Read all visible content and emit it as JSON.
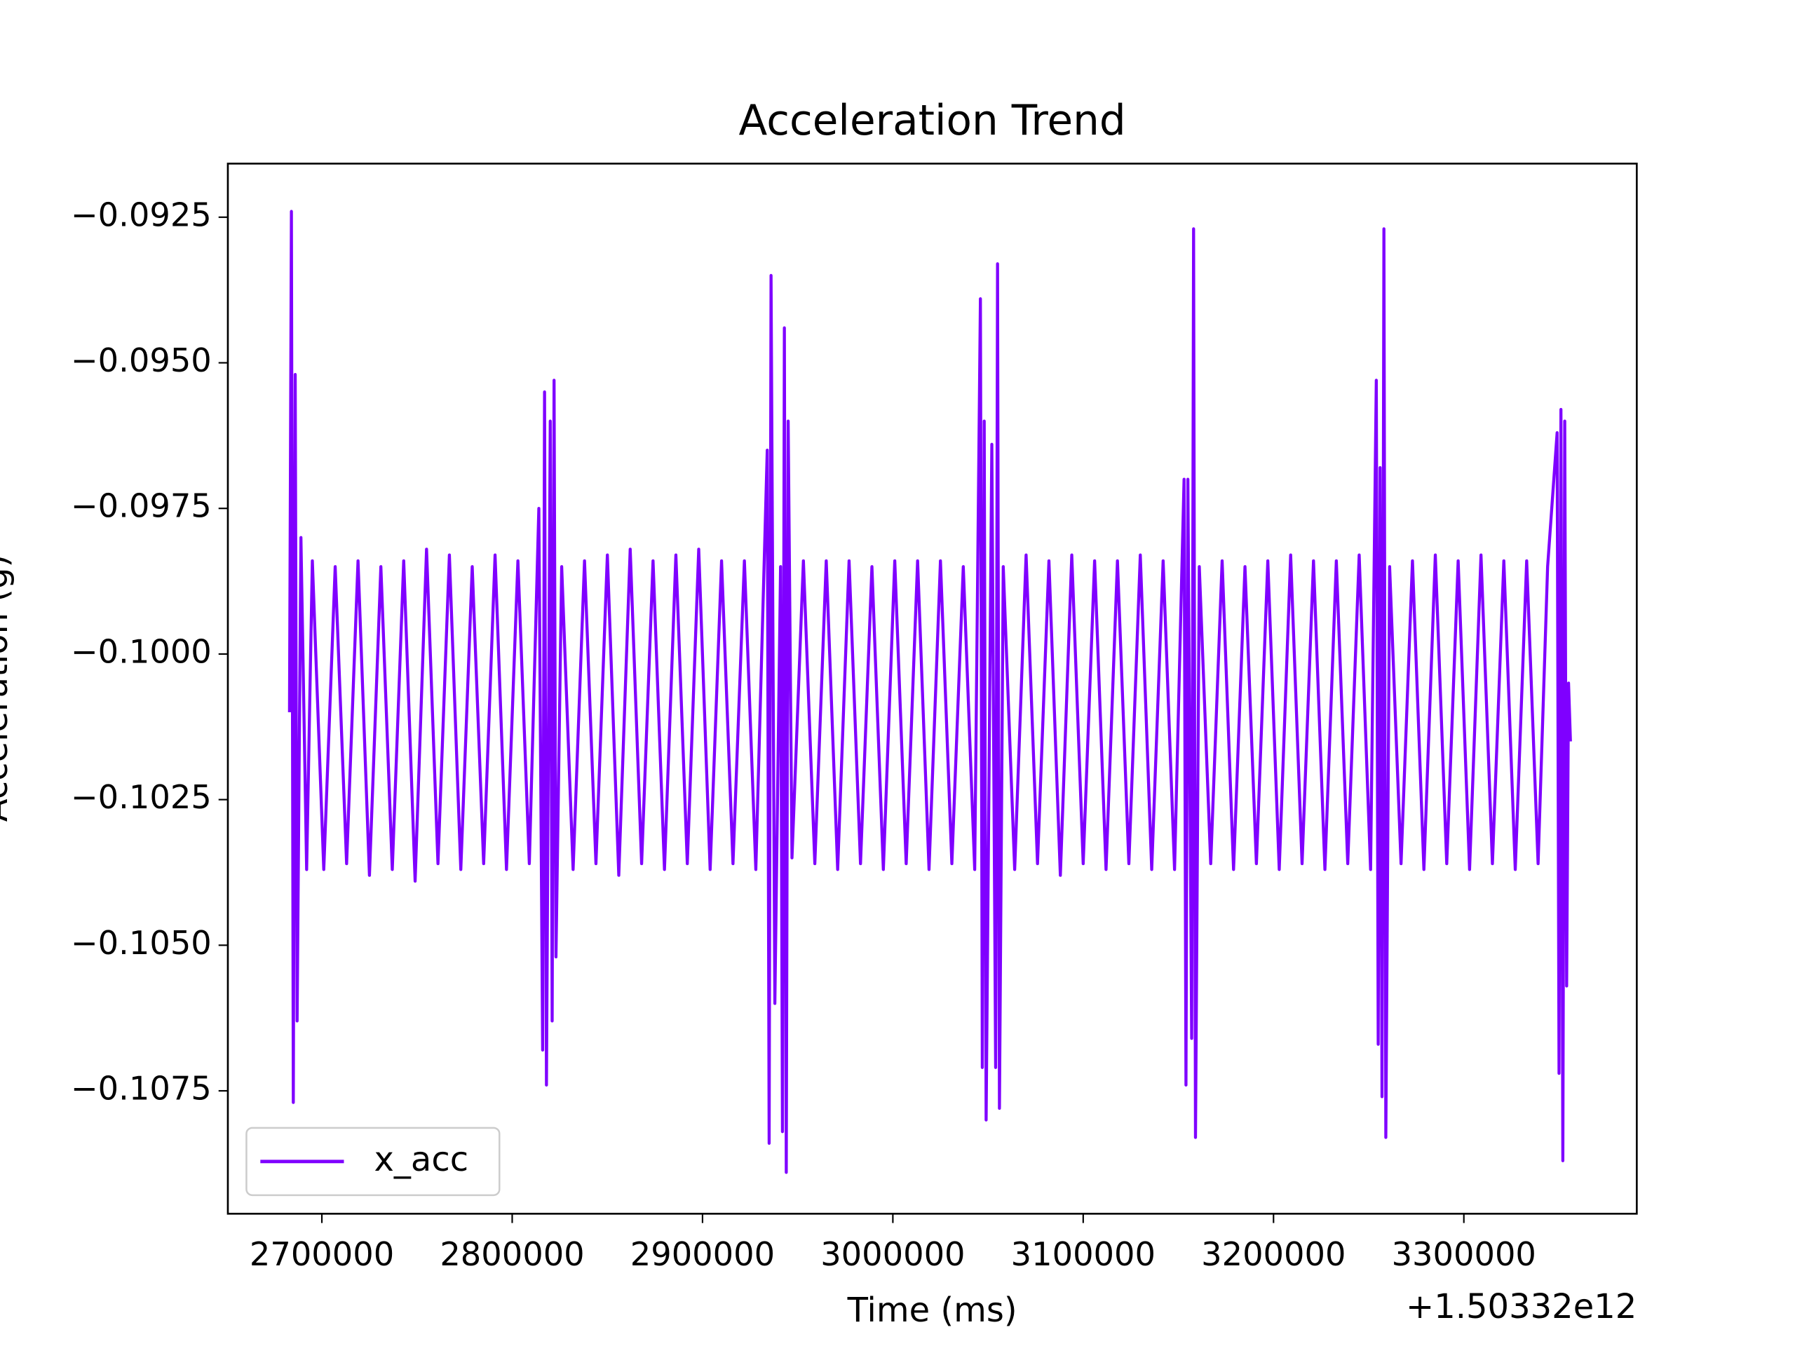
{
  "chart_data": {
    "type": "line",
    "title": "Acceleration Trend",
    "x_label": "Time (ms)",
    "y_label": "Acceleration (g)",
    "x_offset_text": "+1.50332e12",
    "legend": "lower left",
    "grid": false,
    "xlim": [
      2650610,
      3390850
    ],
    "ylim": [
      -0.10961,
      -0.09158
    ],
    "xticks": [
      2700000,
      2800000,
      2900000,
      3000000,
      3100000,
      3200000,
      3300000
    ],
    "yticks": [
      {
        "value": -0.0925,
        "label": "−0.0925"
      },
      {
        "value": -0.095,
        "label": "−0.0950"
      },
      {
        "value": -0.0975,
        "label": "−0.0975"
      },
      {
        "value": -0.1,
        "label": "−0.1000"
      },
      {
        "value": -0.1025,
        "label": "−0.1025"
      },
      {
        "value": -0.105,
        "label": "−0.1050"
      },
      {
        "value": -0.1075,
        "label": "−0.1075"
      }
    ],
    "x": [
      2683000,
      2684000,
      2685000,
      2686000,
      2687000,
      2689000,
      2692000,
      2695000,
      2701000,
      2707000,
      2713000,
      2719000,
      2725000,
      2731000,
      2737000,
      2743000,
      2749000,
      2755000,
      2761000,
      2767000,
      2773000,
      2779000,
      2785000,
      2791000,
      2797000,
      2803000,
      2809000,
      2814000,
      2816000,
      2817000,
      2818000,
      2820000,
      2821000,
      2822000,
      2823000,
      2826000,
      2832000,
      2838000,
      2844000,
      2850000,
      2856000,
      2862000,
      2868000,
      2874000,
      2880000,
      2886000,
      2892000,
      2898000,
      2904000,
      2910000,
      2916000,
      2922000,
      2928000,
      2934000,
      2935000,
      2936000,
      2938000,
      2941000,
      2942000,
      2943000,
      2944000,
      2945000,
      2947000,
      2953000,
      2959000,
      2965000,
      2971000,
      2977000,
      2983000,
      2989000,
      2995000,
      3001000,
      3007000,
      3013000,
      3019000,
      3025000,
      3031000,
      3037000,
      3043000,
      3046000,
      3047000,
      3048000,
      3049000,
      3052000,
      3054000,
      3055000,
      3056000,
      3058000,
      3064000,
      3070000,
      3076000,
      3082000,
      3088000,
      3094000,
      3100000,
      3106000,
      3112000,
      3118000,
      3124000,
      3130000,
      3136000,
      3142000,
      3148000,
      3153000,
      3154000,
      3155000,
      3157000,
      3158000,
      3159000,
      3161000,
      3167000,
      3173000,
      3179000,
      3185000,
      3191000,
      3197000,
      3203000,
      3209000,
      3215000,
      3221000,
      3227000,
      3233000,
      3239000,
      3245000,
      3251000,
      3254000,
      3255000,
      3256000,
      3257000,
      3258000,
      3259000,
      3261000,
      3267000,
      3273000,
      3279000,
      3285000,
      3291000,
      3297000,
      3303000,
      3309000,
      3315000,
      3321000,
      3327000,
      3333000,
      3339000,
      3344000,
      3349000,
      3350000,
      3351000,
      3352000,
      3353000,
      3354000,
      3355000,
      3356000
    ],
    "series": [
      {
        "name": "x_acc",
        "color": "#7f00ff",
        "values": [
          -0.101,
          -0.0924,
          -0.1077,
          -0.0952,
          -0.1063,
          -0.098,
          -0.1037,
          -0.0984,
          -0.1037,
          -0.0985,
          -0.1036,
          -0.0984,
          -0.1038,
          -0.0985,
          -0.1037,
          -0.0984,
          -0.1039,
          -0.0982,
          -0.1036,
          -0.0983,
          -0.1037,
          -0.0985,
          -0.1036,
          -0.0983,
          -0.1037,
          -0.0984,
          -0.1036,
          -0.0975,
          -0.1068,
          -0.0955,
          -0.1074,
          -0.096,
          -0.1063,
          -0.0953,
          -0.1052,
          -0.0985,
          -0.1037,
          -0.0984,
          -0.1036,
          -0.0983,
          -0.1038,
          -0.0982,
          -0.1036,
          -0.0984,
          -0.1037,
          -0.0983,
          -0.1036,
          -0.0982,
          -0.1037,
          -0.0984,
          -0.1036,
          -0.0984,
          -0.1037,
          -0.0965,
          -0.1084,
          -0.0935,
          -0.106,
          -0.0985,
          -0.1082,
          -0.0944,
          -0.1089,
          -0.096,
          -0.1035,
          -0.0984,
          -0.1036,
          -0.0984,
          -0.1037,
          -0.0984,
          -0.1036,
          -0.0985,
          -0.1037,
          -0.0984,
          -0.1036,
          -0.0984,
          -0.1037,
          -0.0984,
          -0.1036,
          -0.0985,
          -0.1037,
          -0.0939,
          -0.1071,
          -0.096,
          -0.108,
          -0.0964,
          -0.1071,
          -0.0933,
          -0.1078,
          -0.0985,
          -0.1037,
          -0.0983,
          -0.1036,
          -0.0984,
          -0.1038,
          -0.0983,
          -0.1036,
          -0.0984,
          -0.1037,
          -0.0984,
          -0.1036,
          -0.0983,
          -0.1037,
          -0.0984,
          -0.1037,
          -0.097,
          -0.1074,
          -0.097,
          -0.1066,
          -0.0927,
          -0.1083,
          -0.0985,
          -0.1036,
          -0.0984,
          -0.1037,
          -0.0985,
          -0.1036,
          -0.0984,
          -0.1037,
          -0.0983,
          -0.1036,
          -0.0984,
          -0.1037,
          -0.0984,
          -0.1036,
          -0.0983,
          -0.1037,
          -0.0953,
          -0.1067,
          -0.0968,
          -0.1076,
          -0.0927,
          -0.1083,
          -0.0985,
          -0.1036,
          -0.0984,
          -0.1037,
          -0.0983,
          -0.1036,
          -0.0984,
          -0.1037,
          -0.0983,
          -0.1036,
          -0.0984,
          -0.1037,
          -0.0984,
          -0.1036,
          -0.0985,
          -0.0962,
          -0.1072,
          -0.0958,
          -0.1087,
          -0.096,
          -0.1057,
          -0.1005,
          -0.1015
        ]
      }
    ]
  }
}
